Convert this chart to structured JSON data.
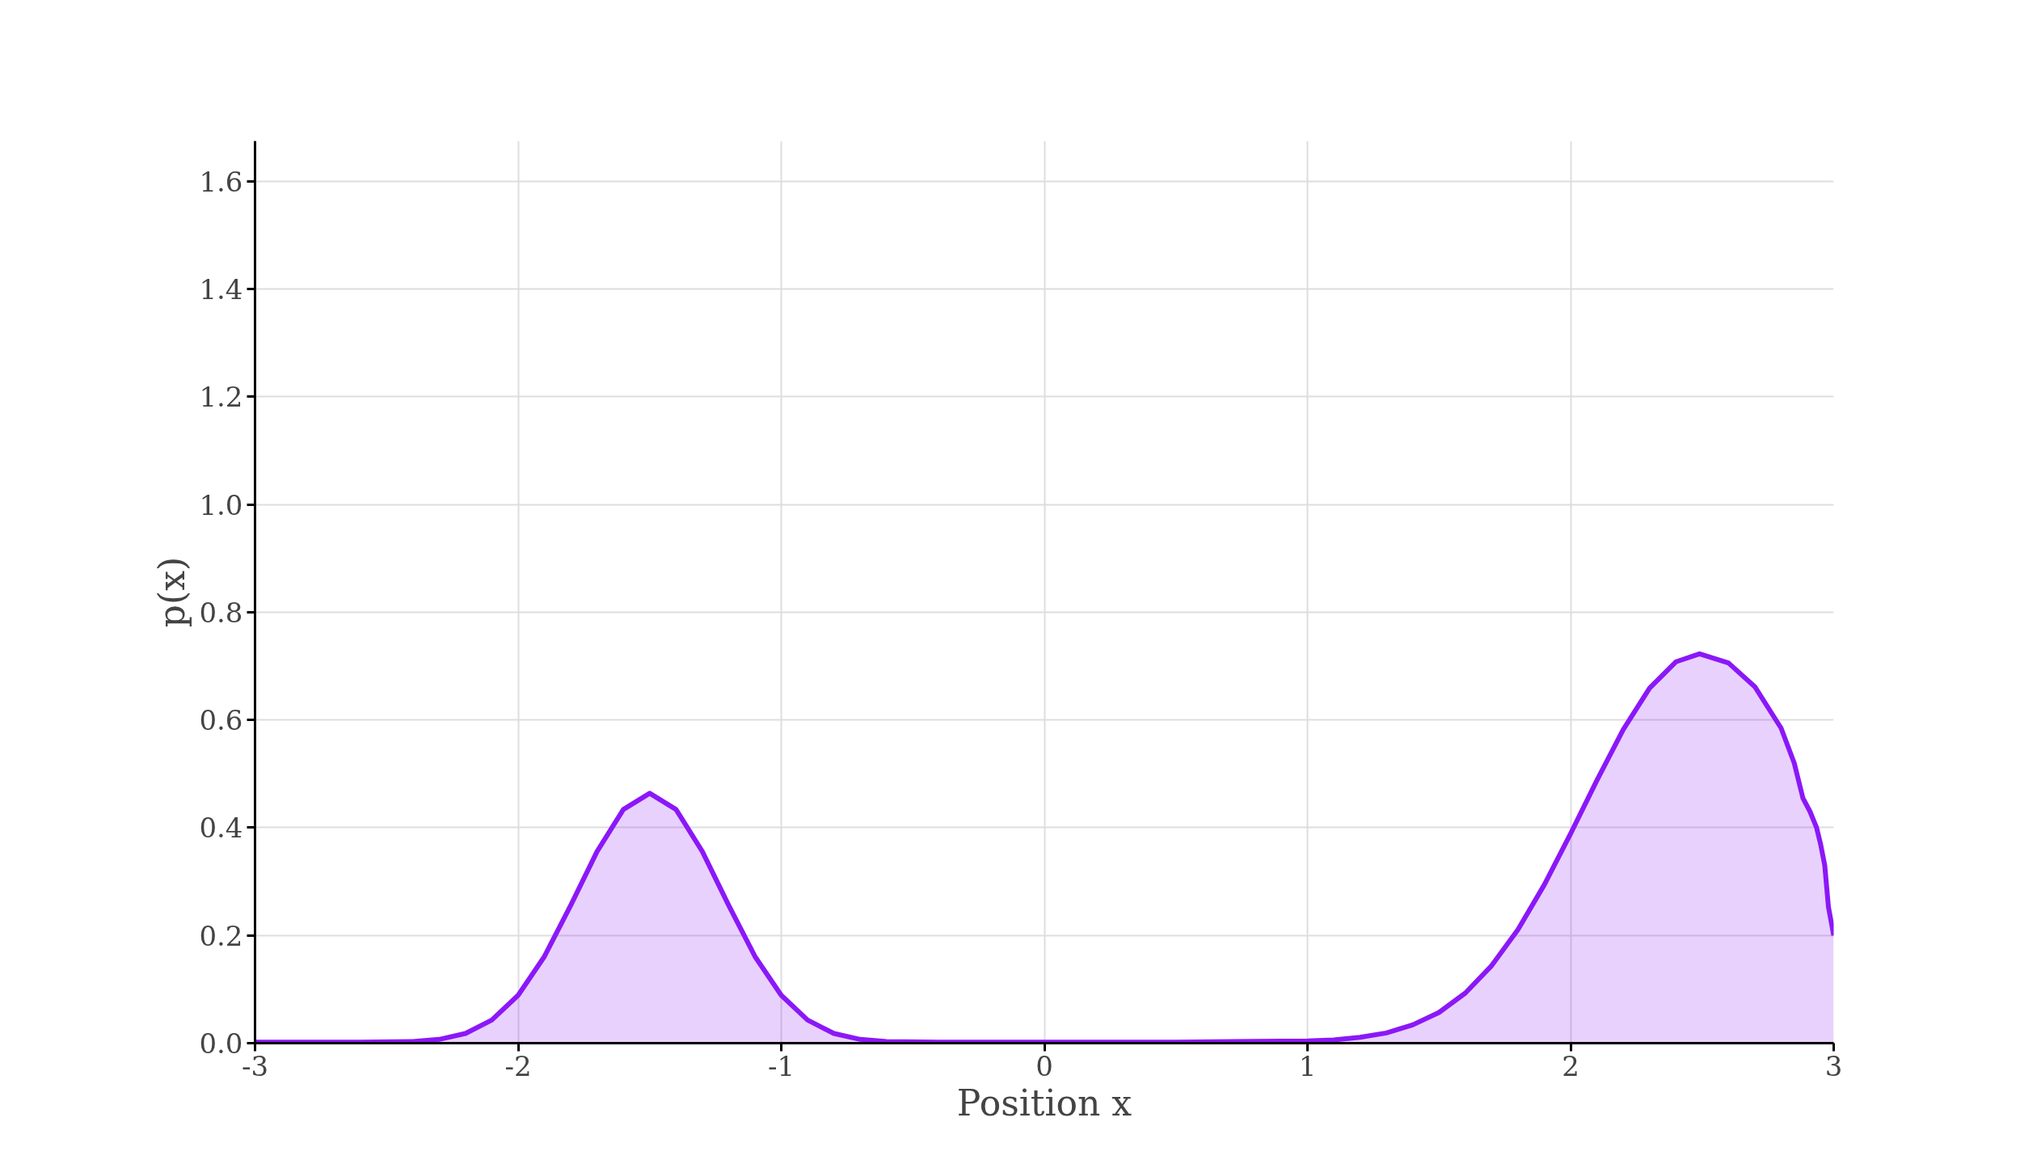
{
  "chart_data": {
    "type": "area",
    "xlabel": "Position x",
    "ylabel": "p(x)",
    "xlim": [
      -3,
      3
    ],
    "ylim": [
      0,
      1.675
    ],
    "xticks": [
      -3,
      -2,
      -1,
      0,
      1,
      2,
      3
    ],
    "yticks": [
      {
        "value": 0,
        "label": "0.0"
      },
      {
        "value": 0.2,
        "label": "0.2"
      },
      {
        "value": 0.4,
        "label": "0.4"
      },
      {
        "value": 0.6,
        "label": "0.6"
      },
      {
        "value": 0.8,
        "label": "0.8"
      },
      {
        "value": 1.0,
        "label": "1.0"
      },
      {
        "value": 1.2,
        "label": "1.2"
      },
      {
        "value": 1.4,
        "label": "1.4"
      },
      {
        "value": 1.6,
        "label": "1.6"
      }
    ],
    "grid": true,
    "x": [
      -3,
      -2.6,
      -2.4,
      -2.3,
      -2.2,
      -2.1,
      -2.0,
      -1.9,
      -1.8,
      -1.7,
      -1.6,
      -1.5,
      -1.4,
      -1.3,
      -1.2,
      -1.1,
      -1.0,
      -0.9,
      -0.8,
      -0.7,
      -0.6,
      -0.4,
      0,
      0.5,
      1.0,
      1.1,
      1.2,
      1.3,
      1.4,
      1.5,
      1.6,
      1.7,
      1.8,
      1.9,
      2.0,
      2.1,
      2.2,
      2.3,
      2.4,
      2.49,
      2.6,
      2.7,
      2.8,
      2.85,
      2.883,
      2.91,
      2.935,
      2.95,
      2.966,
      2.98,
      3.0
    ],
    "series": [
      {
        "color": "#8b18f7",
        "values": [
          0.002,
          0.002,
          0.003,
          0.007,
          0.018,
          0.043,
          0.089,
          0.161,
          0.256,
          0.356,
          0.434,
          0.464,
          0.434,
          0.356,
          0.256,
          0.161,
          0.089,
          0.043,
          0.018,
          0.007,
          0.003,
          0.002,
          0.002,
          0.002,
          0.004,
          0.006,
          0.011,
          0.019,
          0.034,
          0.057,
          0.093,
          0.144,
          0.211,
          0.294,
          0.389,
          0.488,
          0.582,
          0.659,
          0.708,
          0.723,
          0.706,
          0.662,
          0.585,
          0.52,
          0.455,
          0.43,
          0.4,
          0.37,
          0.33,
          0.253,
          0.2
        ]
      }
    ]
  }
}
